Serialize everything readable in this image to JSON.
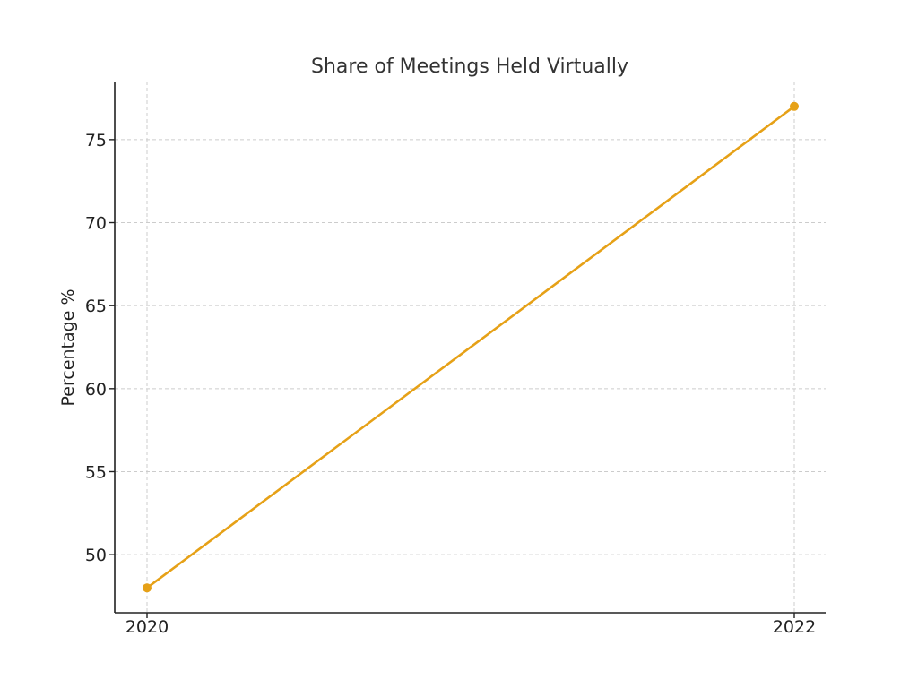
{
  "chart_data": {
    "type": "line",
    "title": "Share of Meetings Held Virtually",
    "xlabel": "",
    "ylabel": "Percentage %",
    "x": [
      "2020",
      "2022"
    ],
    "series": [
      {
        "values": [
          48,
          77
        ],
        "color": "#E6A117"
      }
    ],
    "ylim": [
      46.5,
      78.5
    ],
    "yticks": [
      50,
      55,
      60,
      65,
      70,
      75
    ],
    "grid": true,
    "legend": "none"
  }
}
